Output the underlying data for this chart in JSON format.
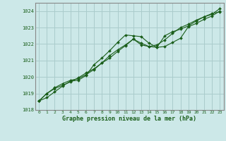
{
  "title": "Graphe pression niveau de la mer (hPa)",
  "bg_color": "#cce8e8",
  "line_color": "#1a5e1a",
  "marker_color": "#1a5e1a",
  "grid_color": "#aacccc",
  "axis_color": "#666666",
  "xlim": [
    -0.5,
    23.5
  ],
  "ylim": [
    1018.0,
    1024.5
  ],
  "yticks": [
    1018,
    1019,
    1020,
    1021,
    1022,
    1023,
    1024
  ],
  "xticks": [
    0,
    1,
    2,
    3,
    4,
    5,
    6,
    7,
    8,
    9,
    10,
    11,
    12,
    13,
    14,
    15,
    16,
    17,
    18,
    19,
    20,
    21,
    22,
    23
  ],
  "series1_x": [
    0,
    1,
    2,
    3,
    4,
    5,
    6,
    7,
    8,
    9,
    10,
    11,
    12,
    13,
    14,
    15,
    16,
    17,
    18,
    19,
    20,
    21,
    22,
    23
  ],
  "series1_y": [
    1018.55,
    1018.75,
    1019.1,
    1019.45,
    1019.75,
    1019.8,
    1020.1,
    1020.75,
    1021.15,
    1021.6,
    1022.1,
    1022.55,
    1022.5,
    1022.45,
    1022.05,
    1021.8,
    1021.85,
    1022.1,
    1022.35,
    1023.05,
    1023.25,
    1023.5,
    1023.7,
    1024.0
  ],
  "series2_x": [
    0,
    1,
    2,
    3,
    4,
    5,
    6,
    7,
    8,
    9,
    10,
    11,
    12,
    13,
    14,
    15,
    16,
    17,
    18,
    19,
    20,
    21,
    22,
    23
  ],
  "series2_y": [
    1018.55,
    1019.0,
    1019.35,
    1019.6,
    1019.8,
    1019.9,
    1020.15,
    1020.45,
    1020.85,
    1021.15,
    1021.55,
    1021.9,
    1022.3,
    1021.95,
    1021.85,
    1021.8,
    1022.5,
    1022.75,
    1022.9,
    1023.1,
    1023.4,
    1023.65,
    1023.85,
    1023.95
  ],
  "series3_x": [
    0,
    1,
    2,
    3,
    4,
    5,
    6,
    7,
    8,
    9,
    10,
    11,
    12,
    13,
    14,
    15,
    16,
    17,
    18,
    19,
    20,
    21,
    22,
    23
  ],
  "series3_y": [
    1018.55,
    1019.0,
    1019.3,
    1019.5,
    1019.7,
    1019.95,
    1020.25,
    1020.5,
    1020.85,
    1021.3,
    1021.65,
    1021.95,
    1022.3,
    1022.05,
    1021.85,
    1021.95,
    1022.25,
    1022.65,
    1023.0,
    1023.2,
    1023.45,
    1023.65,
    1023.8,
    1024.15
  ]
}
